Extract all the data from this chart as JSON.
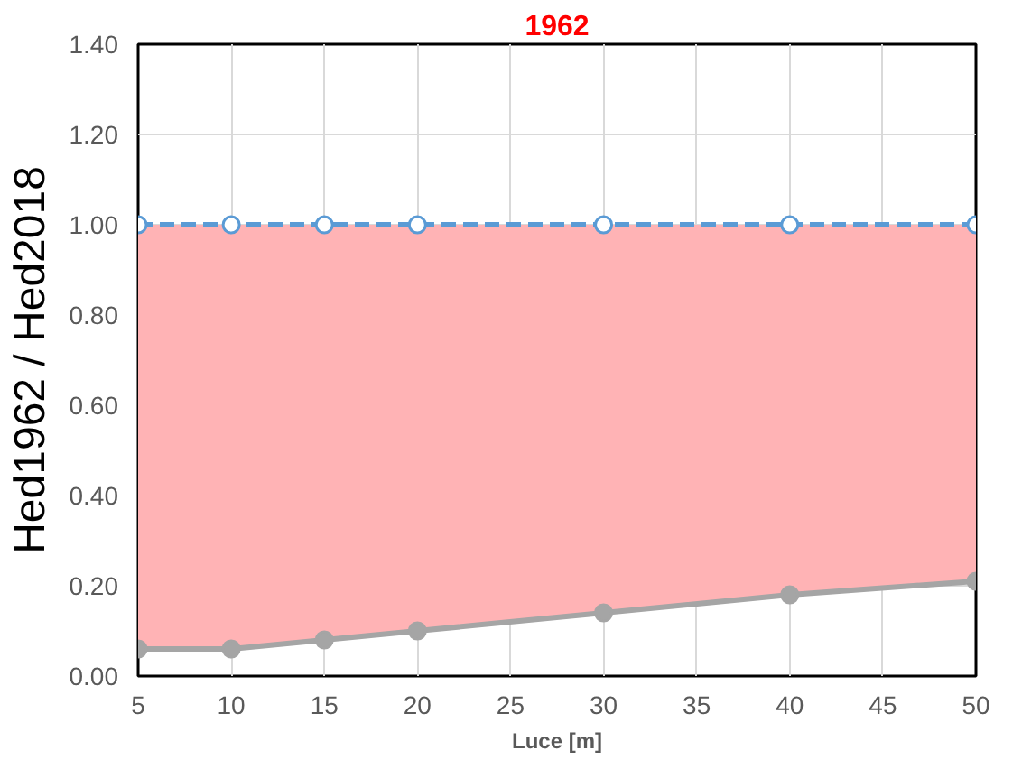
{
  "chart_data": {
    "type": "line",
    "title": "1962",
    "xlabel": "Luce [m]",
    "ylabel": "Hed1962 / Hed2018",
    "x": [
      5,
      10,
      15,
      20,
      30,
      40,
      50
    ],
    "series": [
      {
        "color": "#5b9bd5",
        "values": [
          1.0,
          1.0,
          1.0,
          1.0,
          1.0,
          1.0,
          1.0
        ],
        "line_style": "dashed",
        "marker": "circle"
      },
      {
        "color": "#a5a5a5",
        "values": [
          0.06,
          0.06,
          0.08,
          0.1,
          0.14,
          0.18,
          0.21
        ],
        "line_style": "solid",
        "marker": "circle",
        "lower": [
          0.06,
          0.06,
          0.08,
          0.1,
          0.14,
          0.18,
          0.21
        ],
        "upper": [
          1.0,
          1.0,
          1.0,
          1.0,
          1.0,
          1.0,
          1.0
        ]
      }
    ],
    "xlim": [
      5,
      50
    ],
    "xticks": [
      5,
      10,
      15,
      20,
      25,
      30,
      35,
      40,
      45,
      50
    ],
    "ylim": [
      0,
      1.4
    ],
    "yticks": [
      {
        "value": 0,
        "label": "0.00"
      },
      {
        "value": 0.2,
        "label": "0.20"
      },
      {
        "value": 0.4,
        "label": "0.40"
      },
      {
        "value": 0.6,
        "label": "0.60"
      },
      {
        "value": 0.8,
        "label": "0.80"
      },
      {
        "value": 1.0,
        "label": "1.00"
      },
      {
        "value": 1.2,
        "label": "1.20"
      },
      {
        "value": 1.4,
        "label": "1.40"
      }
    ],
    "grid": true
  }
}
